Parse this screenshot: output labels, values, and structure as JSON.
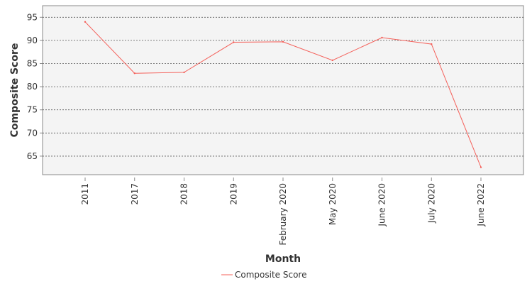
{
  "chart_data": {
    "type": "line",
    "title": "",
    "xlabel": "Month",
    "ylabel": "Composite Score",
    "categories": [
      "2011",
      "2017",
      "2018",
      "2019",
      "February 2020",
      "May 2020",
      "June 2020",
      "July 2020",
      "June 2022"
    ],
    "series": [
      {
        "name": "Composite Score",
        "color": "#f4605a",
        "values": [
          94.0,
          82.9,
          83.1,
          89.6,
          89.7,
          85.7,
          90.6,
          89.2,
          62.6
        ]
      }
    ],
    "ylim": [
      61.0,
      97.5
    ],
    "yticks": [
      65,
      70,
      75,
      80,
      85,
      90,
      95
    ],
    "grid": true,
    "legend": "bottom-center",
    "colors": {
      "plot_background": "#f4f4f4",
      "grid": "#555555",
      "axis": "#888888",
      "text": "#333333"
    }
  }
}
